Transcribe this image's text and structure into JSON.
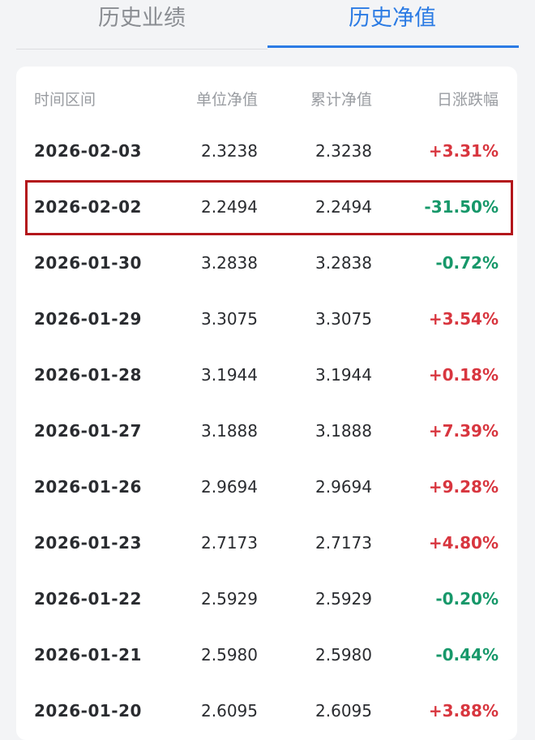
{
  "tabs": [
    "历史业绩",
    "历史净值"
  ],
  "table": {
    "headers": [
      "时间区间",
      "单位净值",
      "累计净值",
      "日涨跌幅"
    ],
    "rows": [
      [
        "2026-02-03",
        "2.3238",
        "2.3238",
        "+3.31%"
      ],
      [
        "2026-02-02",
        "2.2494",
        "2.2494",
        "-31.50%"
      ],
      [
        "2026-01-30",
        "3.2838",
        "3.2838",
        "-0.72%"
      ],
      [
        "2026-01-29",
        "3.3075",
        "3.3075",
        "+3.54%"
      ],
      [
        "2026-01-28",
        "3.1944",
        "3.1944",
        "+0.18%"
      ],
      [
        "2026-01-27",
        "3.1888",
        "3.1888",
        "+7.39%"
      ],
      [
        "2026-01-26",
        "2.9694",
        "2.9694",
        "+9.28%"
      ],
      [
        "2026-01-23",
        "2.7173",
        "2.7173",
        "+4.80%"
      ],
      [
        "2026-01-22",
        "2.5929",
        "2.5929",
        "-0.20%"
      ],
      [
        "2026-01-21",
        "2.5980",
        "2.5980",
        "-0.44%"
      ],
      [
        "2026-01-20",
        "2.6095",
        "2.6095",
        "+3.88%"
      ]
    ]
  }
}
